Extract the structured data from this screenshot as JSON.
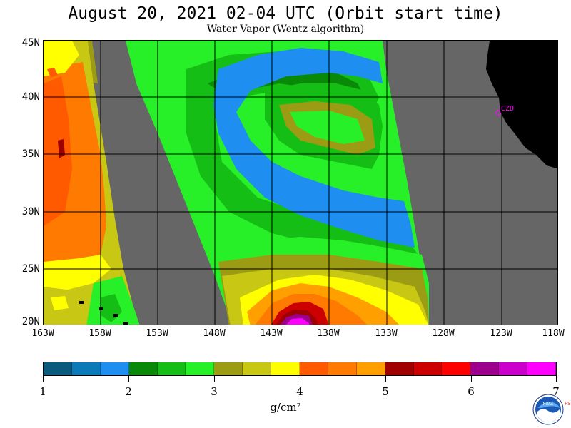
{
  "header": {
    "title": "August 20, 2021  02-04 UTC  (Orbit start time)",
    "subtitle": "Water Vapor (Wentz algorithm)"
  },
  "map": {
    "lat_labels": [
      "45N",
      "40N",
      "35N",
      "30N",
      "25N",
      "20N"
    ],
    "lon_labels": [
      "163W",
      "158W",
      "153W",
      "148W",
      "143W",
      "138W",
      "133W",
      "128W",
      "123W",
      "118W"
    ],
    "station_label": "CZD",
    "colors": {
      "no_data": "#666666",
      "land": "#000000",
      "grid": "#000000",
      "station": "#ff00ff"
    }
  },
  "colorbar": {
    "colors": [
      "#0a5a7e",
      "#0a7ab8",
      "#1e8ef0",
      "#088a08",
      "#14be14",
      "#28f028",
      "#9c9c14",
      "#c8c814",
      "#ffff00",
      "#ff5a00",
      "#ff7a00",
      "#ffa000",
      "#a00000",
      "#cc0000",
      "#ff0000",
      "#9c008c",
      "#cc00cc",
      "#ff00ff"
    ],
    "tick_labels": [
      "1",
      "2",
      "3",
      "4",
      "5",
      "6",
      "7"
    ],
    "unit": "g/cm²"
  },
  "logo": {
    "text": "NOAA",
    "side_text": "PSL"
  }
}
